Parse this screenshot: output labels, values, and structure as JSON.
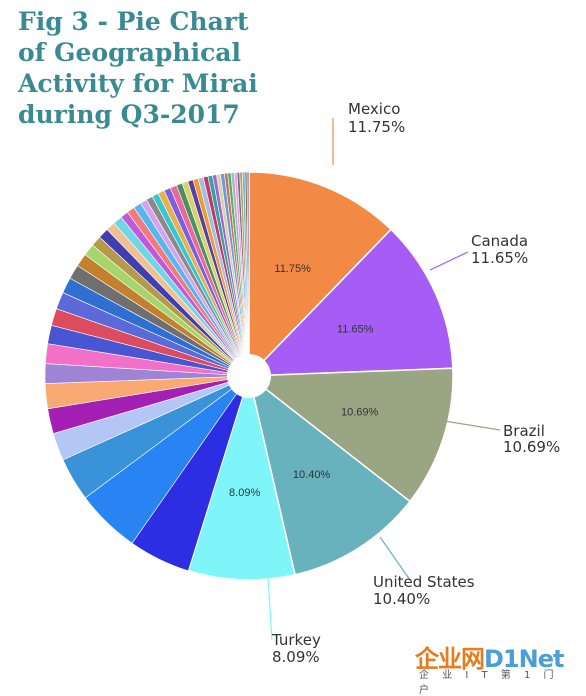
{
  "title_lines": [
    "Fig 3 - Pie Chart",
    "of Geographical",
    "Activity for Mirai",
    "during Q3-2017"
  ],
  "watermark": {
    "brand": "企业网",
    "brand_accent": "D1Net",
    "sub": "企 业 I T 第 1 门 户"
  },
  "chart_data": {
    "type": "pie",
    "title": "Fig 3 - Pie Chart of Geographical Activity for Mirai during Q3-2017",
    "start_angle_deg": 0,
    "direction": "clockwise",
    "labeled_slices": [
      {
        "name": "Mexico",
        "value": 11.75,
        "label": "11.75%",
        "color": "#f28a46"
      },
      {
        "name": "Canada",
        "value": 11.65,
        "label": "11.65%",
        "color": "#a65df5"
      },
      {
        "name": "Brazil",
        "value": 10.69,
        "label": "10.69%",
        "color": "#9aa584"
      },
      {
        "name": "United States",
        "value": 10.4,
        "label": "10.40%",
        "color": "#68b2bd"
      },
      {
        "name": "Turkey",
        "value": 8.09,
        "label": "8.09%",
        "color": "#7ef6f9"
      }
    ],
    "unlabeled_slices": [
      {
        "value": 4.7,
        "color": "#2d2ee3"
      },
      {
        "value": 4.9,
        "color": "#2884f2"
      },
      {
        "value": 3.3,
        "color": "#3a92d8"
      },
      {
        "value": 2.1,
        "color": "#b3c6f5"
      },
      {
        "value": 1.9,
        "color": "#a51fb5"
      },
      {
        "value": 1.9,
        "color": "#f8aa72"
      },
      {
        "value": 1.5,
        "color": "#9f84d6"
      },
      {
        "value": 1.5,
        "color": "#f370c8"
      },
      {
        "value": 1.4,
        "color": "#4a55d4"
      },
      {
        "value": 1.3,
        "color": "#dc4b5e"
      },
      {
        "value": 1.3,
        "color": "#5b6ad8"
      },
      {
        "value": 1.2,
        "color": "#2e6fd1"
      },
      {
        "value": 1.1,
        "color": "#6f6f6f"
      },
      {
        "value": 1.0,
        "color": "#c4802e"
      },
      {
        "value": 0.9,
        "color": "#a6d56b"
      },
      {
        "value": 0.8,
        "color": "#b59a4a"
      },
      {
        "value": 0.8,
        "color": "#3f3fb0"
      },
      {
        "value": 0.7,
        "color": "#f0c090"
      },
      {
        "value": 0.7,
        "color": "#6fd6e8"
      },
      {
        "value": 0.6,
        "color": "#c05ad8"
      },
      {
        "value": 0.6,
        "color": "#f07b7b"
      },
      {
        "value": 0.6,
        "color": "#54b7f0"
      },
      {
        "value": 0.5,
        "color": "#d9a0f0"
      },
      {
        "value": 0.5,
        "color": "#8a8a8a"
      },
      {
        "value": 0.5,
        "color": "#39c6d4"
      },
      {
        "value": 0.5,
        "color": "#e8b04a"
      },
      {
        "value": 0.5,
        "color": "#7b5fe0"
      },
      {
        "value": 0.5,
        "color": "#e86a9a"
      },
      {
        "value": 0.45,
        "color": "#4f8f5f"
      },
      {
        "value": 0.45,
        "color": "#d4d46a"
      },
      {
        "value": 0.4,
        "color": "#5a3fa0"
      },
      {
        "value": 0.4,
        "color": "#f09a3a"
      },
      {
        "value": 0.4,
        "color": "#a0c0e0"
      },
      {
        "value": 0.35,
        "color": "#c03a6a"
      },
      {
        "value": 0.35,
        "color": "#3aa0a0"
      },
      {
        "value": 0.3,
        "color": "#9a6ad0"
      },
      {
        "value": 0.3,
        "color": "#e0d0a0"
      },
      {
        "value": 0.3,
        "color": "#6a9ae0"
      },
      {
        "value": 0.25,
        "color": "#d07050"
      },
      {
        "value": 0.25,
        "color": "#50b070"
      },
      {
        "value": 0.25,
        "color": "#b0b0d0"
      },
      {
        "value": 0.2,
        "color": "#f0a0c0"
      },
      {
        "value": 0.2,
        "color": "#707090"
      },
      {
        "value": 0.2,
        "color": "#c0a060"
      },
      {
        "value": 0.2,
        "color": "#60c0e0"
      },
      {
        "value": 0.15,
        "color": "#a06030"
      },
      {
        "value": 0.15,
        "color": "#8080c0"
      }
    ]
  }
}
